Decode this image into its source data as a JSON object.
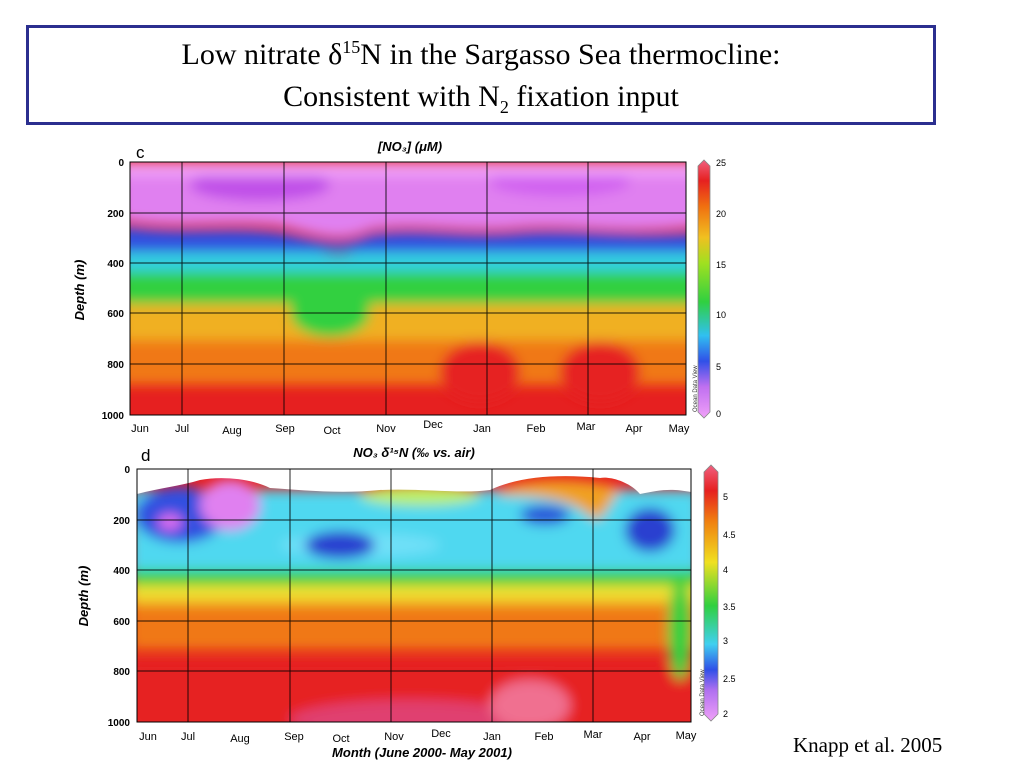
{
  "slide": {
    "title_line1_pre": "Low nitrate δ",
    "title_line1_sup": "15",
    "title_line1_post": "N in the Sargasso Sea thermocline:",
    "title_line2_pre": "Consistent with N",
    "title_line2_sub": "2",
    "title_line2_post": " fixation input",
    "citation": "Knapp et al. 2005"
  },
  "chart_data": [
    {
      "type": "heatmap",
      "panel_label": "c",
      "title": "[NO₃] (μM)",
      "xlabel": "",
      "ylabel": "Depth (m)",
      "x_tick_labels": [
        "Jun",
        "Jul",
        "Aug",
        "Sep",
        "Oct",
        "Nov",
        "Dec",
        "Jan",
        "Feb",
        "Mar",
        "Apr",
        "May"
      ],
      "y_ticks": [
        0,
        200,
        400,
        600,
        800,
        1000
      ],
      "ylim": [
        0,
        1000
      ],
      "y_inverted": true,
      "colorbar": {
        "ticks": [
          0,
          5,
          10,
          15,
          20,
          25
        ],
        "range": [
          0,
          25
        ],
        "watermark": "Ocean Data View"
      },
      "colors": [
        "#e070f0",
        "#2a4ae0",
        "#38d848",
        "#f0c020",
        "#f07010",
        "#e62020"
      ],
      "layers": [
        {
          "depth_m": [
            0,
            250
          ],
          "value": 1
        },
        {
          "depth_m": [
            250,
            400
          ],
          "value": 4
        },
        {
          "depth_m": [
            400,
            600
          ],
          "value": 11
        },
        {
          "depth_m": [
            600,
            800
          ],
          "value": 18
        },
        {
          "depth_m": [
            800,
            1000
          ],
          "value": 22
        }
      ],
      "grid": true
    },
    {
      "type": "heatmap",
      "panel_label": "d",
      "title": "NO₃ δ¹⁵N (‰ vs. air)",
      "xlabel": "Month (June 2000- May 2001)",
      "ylabel": "Depth (m)",
      "x_tick_labels": [
        "Jun",
        "Jul",
        "Aug",
        "Sep",
        "Oct",
        "Nov",
        "Dec",
        "Jan",
        "Feb",
        "Mar",
        "Apr",
        "May"
      ],
      "y_ticks": [
        0,
        200,
        400,
        600,
        800,
        1000
      ],
      "ylim": [
        0,
        1000
      ],
      "y_inverted": true,
      "colorbar": {
        "ticks": [
          2,
          2.5,
          3,
          3.5,
          4,
          4.5,
          5
        ],
        "range": [
          2,
          5
        ],
        "watermark": "Ocean Data View"
      },
      "colors": [
        "#e070f0",
        "#3050e0",
        "#40d0f0",
        "#30d040",
        "#f0d020",
        "#f07010",
        "#e62020"
      ],
      "layers": [
        {
          "depth_m": [
            50,
            350
          ],
          "value": 2.8
        },
        {
          "depth_m": [
            350,
            450
          ],
          "value": 3.5
        },
        {
          "depth_m": [
            450,
            600
          ],
          "value": 4.0
        },
        {
          "depth_m": [
            600,
            800
          ],
          "value": 4.5
        },
        {
          "depth_m": [
            800,
            1000
          ],
          "value": 5.0
        }
      ],
      "grid": true
    }
  ]
}
